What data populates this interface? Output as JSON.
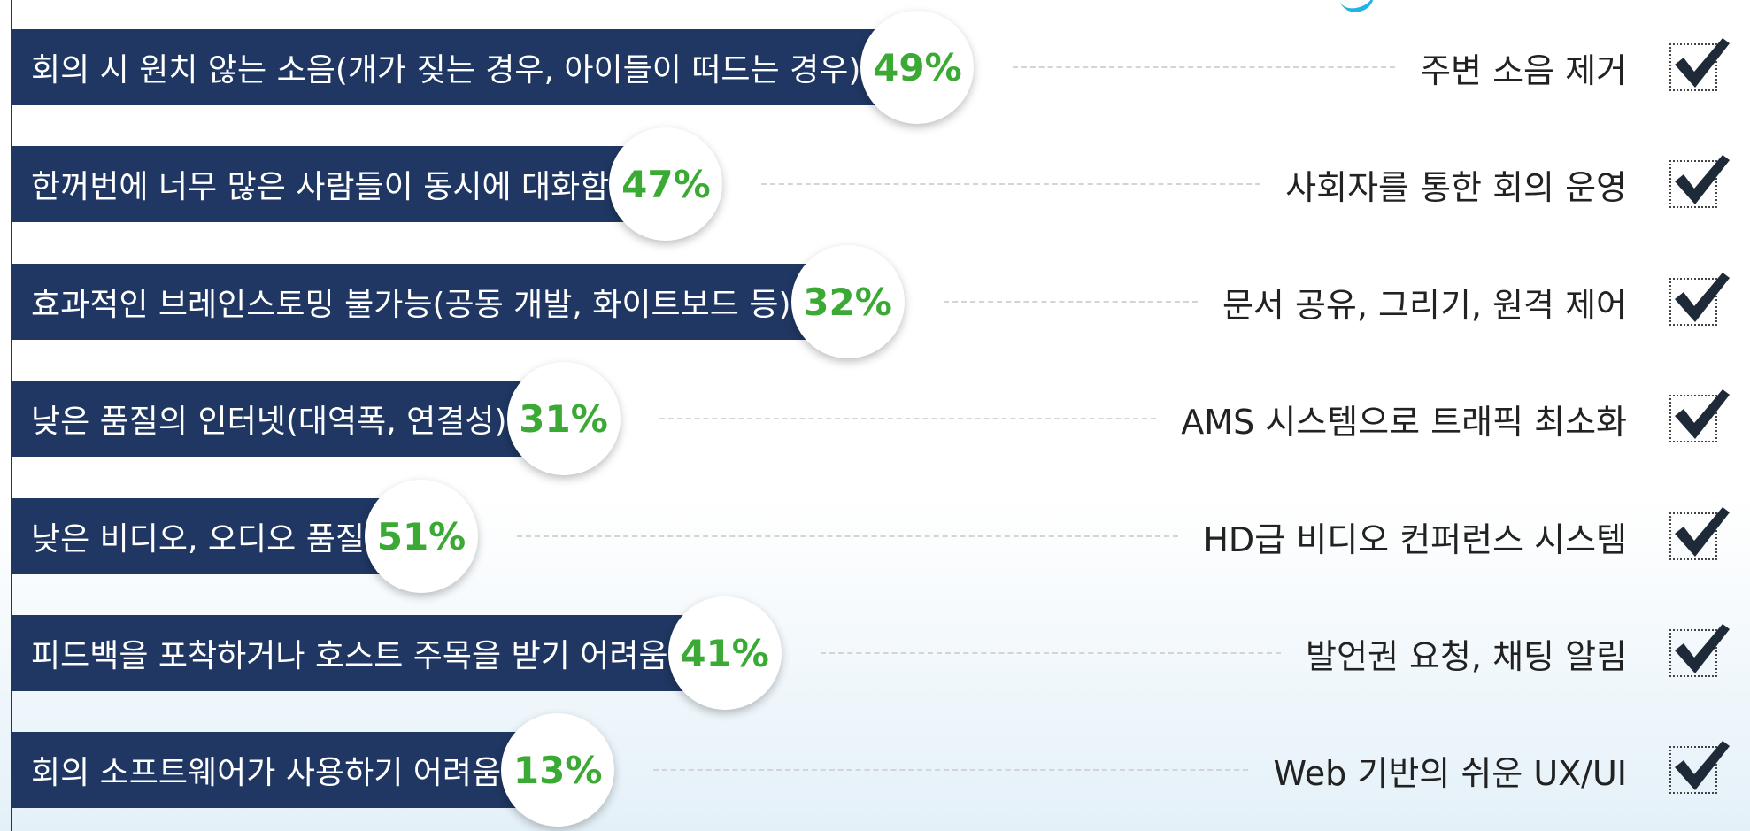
{
  "rows": [
    {
      "problem": "회의 시 원치 않는 소음(개가 짖는 경우, 아이들이 떠드는 경우)",
      "percent": "49%",
      "solution": "주변 소음 제거"
    },
    {
      "problem": "한꺼번에 너무 많은 사람들이 동시에 대화함",
      "percent": "47%",
      "solution": "사회자를 통한 회의 운영"
    },
    {
      "problem": "효과적인 브레인스토밍 불가능(공동 개발, 화이트보드 등)",
      "percent": "32%",
      "solution": "문서 공유, 그리기, 원격 제어"
    },
    {
      "problem": "낮은 품질의 인터넷(대역폭, 연결성)",
      "percent": "31%",
      "solution": "AMS 시스템으로 트래픽 최소화"
    },
    {
      "problem": "낮은 비디오, 오디오 품질",
      "percent": "51%",
      "solution": "HD급  비디오 컨퍼런스 시스템"
    },
    {
      "problem": "피드백을 포착하거나 호스트 주목을 받기 어려움",
      "percent": "41%",
      "solution": "발언권 요청, 채팅 알림"
    },
    {
      "problem": "회의 소프트웨어가 사용하기 어려움",
      "percent": "13%",
      "solution": "Web 기반의 쉬운 UX/UI"
    }
  ]
}
